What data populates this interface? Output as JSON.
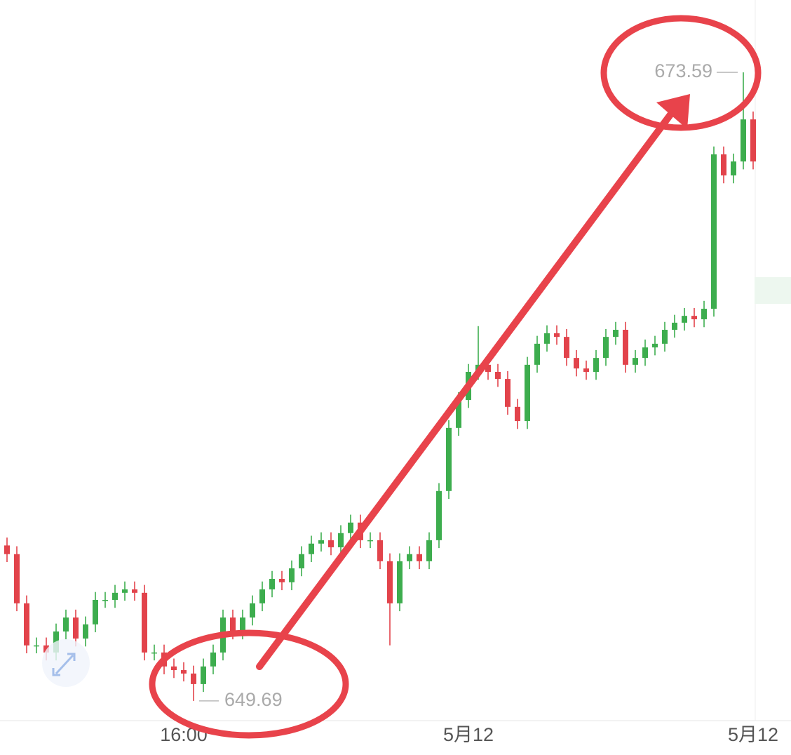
{
  "chart_data": {
    "type": "candlestick",
    "categories": [
      null,
      null,
      null,
      null,
      null,
      null,
      null,
      null,
      null,
      null,
      null,
      null,
      null,
      null,
      null,
      null,
      null,
      null,
      "16:00",
      null,
      null,
      null,
      null,
      null,
      null,
      null,
      null,
      null,
      null,
      null,
      null,
      null,
      null,
      null,
      null,
      null,
      null,
      null,
      null,
      null,
      null,
      null,
      null,
      null,
      null,
      null,
      null,
      "5月12",
      null,
      null,
      null,
      null,
      null,
      null,
      null,
      null,
      null,
      null,
      null,
      null,
      null,
      null,
      null,
      null,
      null,
      null,
      null,
      null,
      null,
      null,
      null,
      null,
      null,
      null,
      null,
      null,
      "5月12"
    ],
    "open": [
      655.6,
      655.27,
      653.4,
      651.8,
      651.8,
      651.53,
      652.33,
      652.86,
      652.06,
      652.6,
      653.53,
      653.53,
      653.8,
      653.93,
      653.8,
      651.53,
      651.53,
      651.0,
      650.86,
      650.73,
      650.33,
      651.0,
      651.53,
      652.86,
      652.33,
      652.86,
      653.4,
      653.93,
      654.33,
      654.2,
      654.73,
      655.27,
      655.67,
      655.8,
      655.53,
      656.07,
      656.47,
      655.8,
      655.8,
      655.0,
      653.4,
      655.0,
      655.27,
      655.0,
      655.8,
      657.67,
      660.07,
      661.13,
      662.2,
      662.47,
      662.2,
      661.93,
      660.87,
      660.33,
      662.47,
      663.27,
      663.67,
      663.53,
      662.73,
      662.33,
      662.2,
      662.73,
      663.53,
      663.8,
      662.47,
      662.73,
      663.13,
      663.27,
      663.8,
      664.07,
      664.33,
      664.2,
      664.6,
      670.47,
      669.67,
      670.2,
      671.8
    ],
    "high": [
      655.9,
      655.57,
      653.7,
      652.1,
      652.1,
      652.63,
      653.16,
      653.16,
      652.9,
      653.83,
      653.83,
      654.1,
      654.23,
      654.23,
      654.1,
      651.83,
      651.83,
      651.3,
      651.16,
      651.03,
      651.3,
      651.83,
      653.16,
      653.16,
      653.16,
      653.7,
      654.23,
      654.63,
      654.63,
      655.03,
      655.57,
      655.97,
      656.1,
      656.1,
      656.37,
      656.77,
      656.77,
      656.1,
      656.1,
      655.3,
      655.3,
      655.57,
      655.57,
      656.1,
      657.97,
      660.37,
      661.43,
      662.5,
      663.94,
      662.77,
      662.5,
      662.23,
      661.17,
      662.77,
      663.57,
      663.97,
      663.97,
      663.83,
      663.03,
      662.63,
      663.03,
      663.83,
      664.1,
      664.1,
      663.03,
      663.43,
      663.57,
      664.1,
      664.37,
      664.63,
      664.63,
      664.9,
      670.77,
      670.77,
      670.5,
      673.59,
      672.1
    ],
    "low": [
      654.97,
      653.1,
      651.5,
      651.5,
      651.23,
      651.23,
      652.03,
      651.76,
      651.76,
      652.3,
      653.23,
      653.23,
      653.5,
      653.5,
      651.23,
      651.23,
      650.7,
      650.56,
      650.43,
      649.69,
      650.03,
      650.7,
      651.23,
      652.03,
      652.03,
      652.56,
      653.1,
      653.63,
      653.9,
      653.9,
      654.43,
      654.97,
      655.37,
      655.23,
      655.23,
      655.77,
      655.5,
      655.5,
      654.7,
      651.8,
      653.1,
      654.7,
      654.7,
      654.7,
      655.5,
      657.37,
      659.77,
      660.83,
      661.9,
      661.9,
      661.63,
      660.57,
      660.03,
      660.03,
      662.17,
      662.97,
      663.23,
      662.43,
      662.03,
      661.9,
      661.9,
      662.43,
      663.23,
      662.17,
      662.17,
      662.43,
      662.83,
      662.97,
      663.5,
      663.77,
      663.9,
      663.9,
      664.3,
      669.37,
      669.37,
      669.9,
      669.9
    ],
    "close": [
      655.27,
      653.4,
      651.8,
      651.8,
      651.53,
      652.33,
      652.86,
      652.06,
      652.6,
      653.53,
      653.53,
      653.8,
      653.93,
      653.8,
      651.53,
      651.53,
      651.0,
      650.86,
      650.73,
      650.33,
      651.0,
      651.53,
      652.86,
      652.33,
      652.86,
      653.4,
      653.93,
      654.33,
      654.2,
      654.73,
      655.27,
      655.67,
      655.8,
      655.53,
      656.07,
      656.47,
      655.8,
      655.8,
      655.0,
      653.4,
      655.0,
      655.27,
      655.0,
      655.8,
      657.67,
      660.07,
      661.13,
      662.2,
      662.47,
      662.2,
      661.93,
      660.87,
      660.33,
      662.47,
      663.27,
      663.67,
      663.53,
      662.73,
      662.33,
      662.2,
      662.73,
      663.53,
      663.8,
      662.47,
      662.73,
      663.13,
      663.27,
      663.8,
      664.07,
      664.33,
      664.2,
      664.6,
      670.47,
      669.67,
      670.2,
      671.8,
      670.2
    ],
    "max_marker": 673.59,
    "min_marker": 649.69,
    "up_color": "#3dad4e",
    "down_color": "#e2434b",
    "ylim": [
      648.94,
      676.34
    ]
  }
}
